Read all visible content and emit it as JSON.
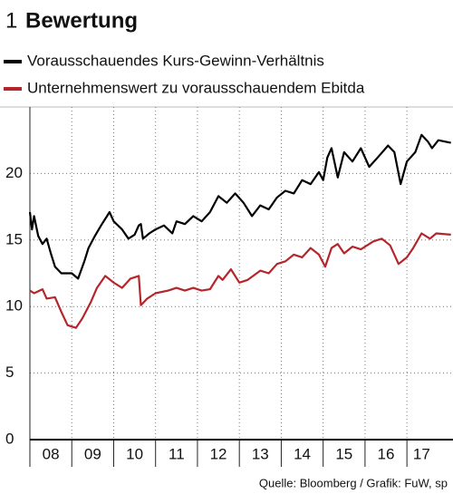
{
  "chart_data": {
    "type": "line",
    "number": "1",
    "title": "Bewertung",
    "source": "Quelle: Bloomberg / Grafik: FuW, sp",
    "series": [
      {
        "name": "Vorausschauendes Kurs-Gewinn-Verhältnis",
        "color": "#000000",
        "x": [
          2008.0,
          2008.05,
          2008.1,
          2008.2,
          2008.3,
          2008.4,
          2008.5,
          2008.6,
          2008.75,
          2009.0,
          2009.15,
          2009.3,
          2009.4,
          2009.55,
          2009.7,
          2009.9,
          2010.0,
          2010.2,
          2010.35,
          2010.5,
          2010.6,
          2010.65,
          2010.7,
          2010.85,
          2011.0,
          2011.2,
          2011.4,
          2011.5,
          2011.7,
          2011.9,
          2012.1,
          2012.3,
          2012.5,
          2012.7,
          2012.9,
          2013.1,
          2013.3,
          2013.5,
          2013.7,
          2013.9,
          2014.1,
          2014.3,
          2014.5,
          2014.7,
          2014.9,
          2015.0,
          2015.1,
          2015.2,
          2015.35,
          2015.5,
          2015.7,
          2015.9,
          2016.1,
          2016.3,
          2016.55,
          2016.7,
          2016.85,
          2017.0,
          2017.2,
          2017.35,
          2017.5,
          2017.6,
          2017.75,
          2018.05
        ],
        "values": [
          17.1,
          15.8,
          16.8,
          15.3,
          14.7,
          15.1,
          14.0,
          13.0,
          12.5,
          12.5,
          12.1,
          13.4,
          14.4,
          15.3,
          16.1,
          17.1,
          16.4,
          15.8,
          15.1,
          15.4,
          16.1,
          16.2,
          15.1,
          15.5,
          15.8,
          16.1,
          15.5,
          16.4,
          16.2,
          16.8,
          16.4,
          17.1,
          18.3,
          17.8,
          18.5,
          17.8,
          16.8,
          17.6,
          17.3,
          18.2,
          18.7,
          18.5,
          19.5,
          19.2,
          20.1,
          19.5,
          21.2,
          21.9,
          19.7,
          21.6,
          20.9,
          21.9,
          20.5,
          21.2,
          22.1,
          21.6,
          19.2,
          20.9,
          21.6,
          22.9,
          22.4,
          21.9,
          22.5,
          22.3
        ]
      },
      {
        "name": "Unternehmenswert zu vorausschauendem Ebitda",
        "color": "#b5262b",
        "x": [
          2008.0,
          2008.1,
          2008.3,
          2008.4,
          2008.6,
          2008.75,
          2008.9,
          2009.1,
          2009.25,
          2009.45,
          2009.6,
          2009.8,
          2010.0,
          2010.2,
          2010.4,
          2010.6,
          2010.65,
          2010.8,
          2011.0,
          2011.3,
          2011.5,
          2011.7,
          2011.9,
          2012.1,
          2012.3,
          2012.5,
          2012.6,
          2012.8,
          2013.0,
          2013.2,
          2013.5,
          2013.7,
          2013.9,
          2014.1,
          2014.3,
          2014.5,
          2014.7,
          2014.9,
          2015.05,
          2015.2,
          2015.35,
          2015.5,
          2015.7,
          2015.9,
          2016.2,
          2016.4,
          2016.6,
          2016.8,
          2017.0,
          2017.15,
          2017.35,
          2017.55,
          2017.7,
          2018.05
        ],
        "values": [
          11.2,
          11.0,
          11.3,
          10.6,
          10.7,
          9.6,
          8.6,
          8.4,
          9.1,
          10.3,
          11.4,
          12.3,
          11.8,
          11.4,
          12.1,
          12.3,
          10.1,
          10.6,
          11.0,
          11.2,
          11.4,
          11.2,
          11.4,
          11.2,
          11.3,
          12.3,
          12.0,
          12.8,
          11.8,
          12.0,
          12.7,
          12.5,
          13.2,
          13.4,
          13.9,
          13.7,
          14.4,
          13.9,
          13.0,
          14.4,
          14.7,
          14.0,
          14.5,
          14.3,
          14.9,
          15.1,
          14.6,
          13.2,
          13.7,
          14.4,
          15.5,
          15.1,
          15.5,
          15.4
        ]
      }
    ],
    "xlim": [
      2008,
      2018.1
    ],
    "xticks": [
      {
        "value": 2008.5,
        "label": "08"
      },
      {
        "value": 2009.5,
        "label": "09"
      },
      {
        "value": 2010.5,
        "label": "10"
      },
      {
        "value": 2011.5,
        "label": "11"
      },
      {
        "value": 2012.5,
        "label": "12"
      },
      {
        "value": 2013.5,
        "label": "13"
      },
      {
        "value": 2014.5,
        "label": "14"
      },
      {
        "value": 2015.5,
        "label": "15"
      },
      {
        "value": 2016.5,
        "label": "16"
      },
      {
        "value": 2017.35,
        "label": "17"
      }
    ],
    "xgrid": [
      2009,
      2010,
      2011,
      2012,
      2013,
      2014,
      2015,
      2016,
      2017
    ],
    "ylim": [
      0,
      25
    ],
    "yticks": [
      0,
      5,
      10,
      15,
      20
    ],
    "grid": true
  }
}
